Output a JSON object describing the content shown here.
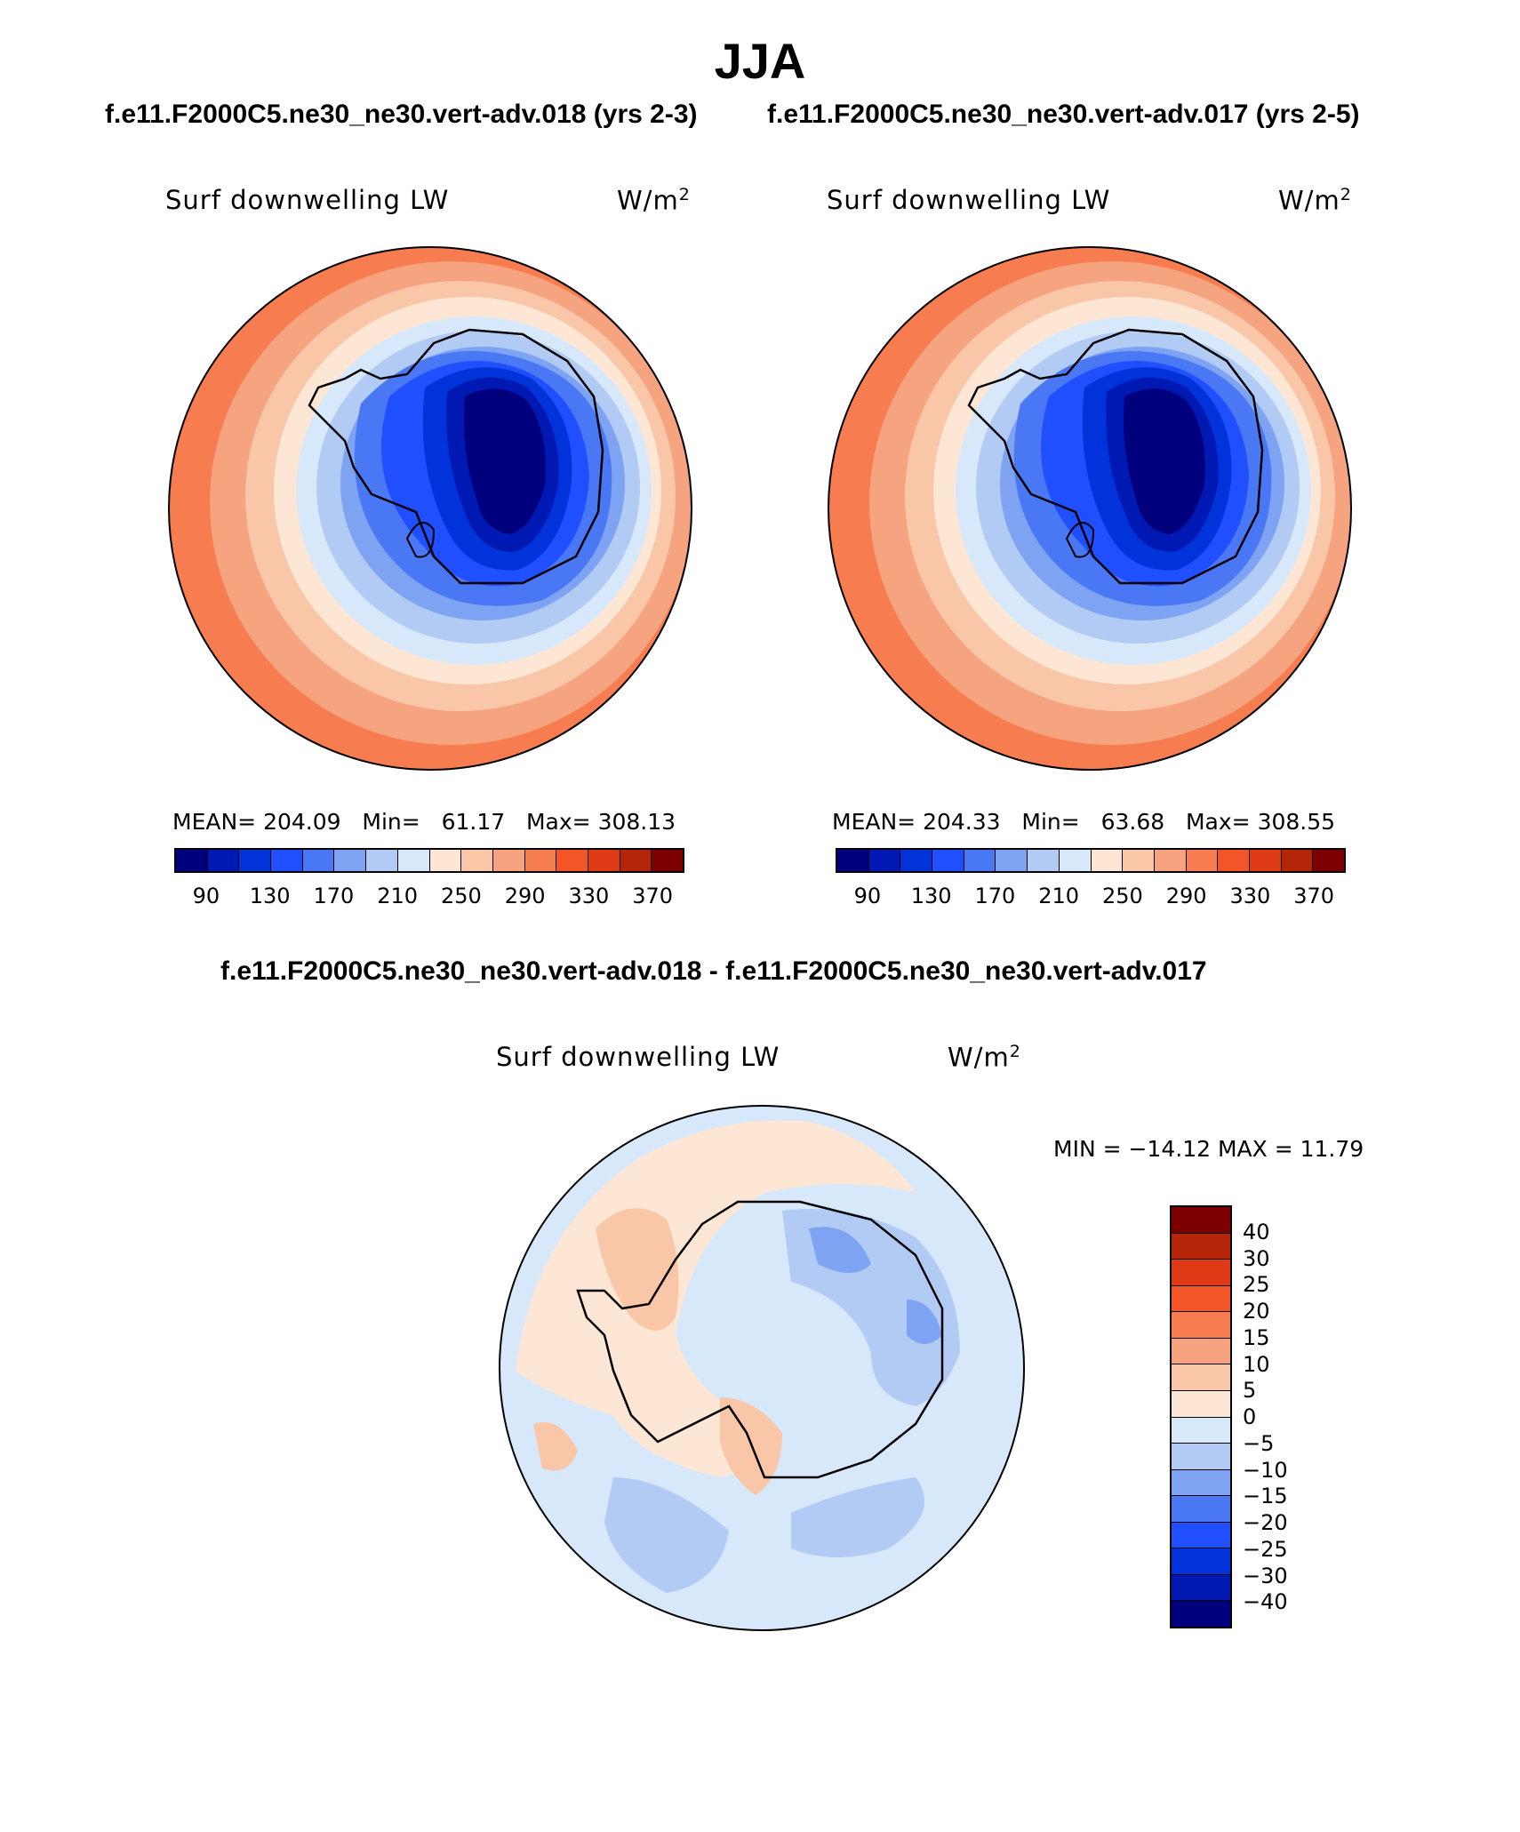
{
  "title": "JJA",
  "panels": [
    {
      "case_title": "f.e11.F2000C5.ne30_ne30.vert-adv.018 (yrs 2-3)",
      "variable_label": "Surf downwelling LW",
      "units": "W/m",
      "units_exp": "2",
      "mean_label": "MEAN=",
      "mean": "204.09",
      "min_label": "Min=",
      "min": "61.17",
      "max_label": "Max=",
      "max": "308.13"
    },
    {
      "case_title": "f.e11.F2000C5.ne30_ne30.vert-adv.017 (yrs 2-5)",
      "variable_label": "Surf downwelling LW",
      "units": "W/m",
      "units_exp": "2",
      "mean_label": "MEAN=",
      "mean": "204.33",
      "min_label": "Min=",
      "min": "63.68",
      "max_label": "Max=",
      "max": "308.55"
    }
  ],
  "diff_panel": {
    "title": "f.e11.F2000C5.ne30_ne30.vert-adv.018 - f.e11.F2000C5.ne30_ne30.vert-adv.017",
    "variable_label": "Surf downwelling LW",
    "units": "W/m",
    "units_exp": "2",
    "minmax_text": "MIN = −14.12 MAX =   11.79"
  },
  "colorbar_main": {
    "colors": [
      "#00007f",
      "#0019b2",
      "#0033d9",
      "#1f4fff",
      "#4a78f5",
      "#7ea3f2",
      "#b1cbf5",
      "#d8e8fb",
      "#fde6d3",
      "#f9c7a8",
      "#f6a47f",
      "#f77c50",
      "#f35528",
      "#de3a16",
      "#b52608",
      "#7d0000"
    ],
    "tick_labels": [
      "90",
      "130",
      "170",
      "210",
      "250",
      "290",
      "330",
      "370"
    ]
  },
  "colorbar_diff": {
    "colors": [
      "#7d0000",
      "#b52608",
      "#de3a16",
      "#f35528",
      "#f77c50",
      "#f6a47f",
      "#f9c7a8",
      "#fde6d3",
      "#d8e8fb",
      "#b1cbf5",
      "#7ea3f2",
      "#4a78f5",
      "#1f4fff",
      "#0033d9",
      "#0019b2",
      "#00007f"
    ],
    "tick_labels": [
      "40",
      "30",
      "25",
      "20",
      "15",
      "10",
      "5",
      "0",
      "−5",
      "−10",
      "−15",
      "−20",
      "−25",
      "−30",
      "−40"
    ]
  }
}
